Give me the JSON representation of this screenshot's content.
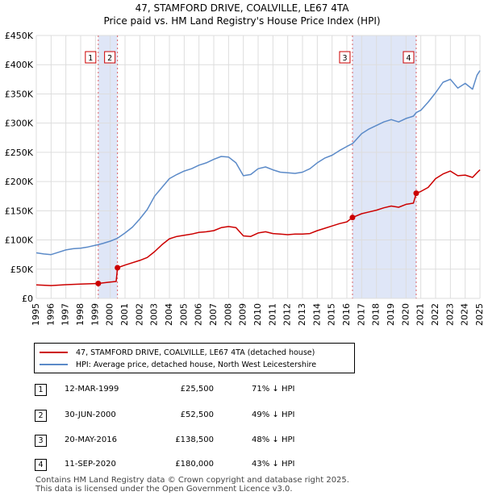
{
  "title": "47, STAMFORD DRIVE, COALVILLE, LE67 4TA",
  "subtitle": "Price paid vs. HM Land Registry's House Price Index (HPI)",
  "colors": {
    "price": "#cc0000",
    "hpi": "#5b8ac8",
    "band": "#dfe6f7",
    "grid": "#dddddd"
  },
  "chart_data": {
    "type": "line",
    "x_range": [
      1995,
      2025
    ],
    "y_range": [
      0,
      450000
    ],
    "y_ticks": [
      0,
      50000,
      100000,
      150000,
      200000,
      250000,
      300000,
      350000,
      400000,
      450000
    ],
    "y_tick_labels": [
      "£0",
      "£50K",
      "£100K",
      "£150K",
      "£200K",
      "£250K",
      "£300K",
      "£350K",
      "£400K",
      "£450K"
    ],
    "x_ticks": [
      1995,
      1996,
      1997,
      1998,
      1999,
      2000,
      2001,
      2002,
      2003,
      2004,
      2005,
      2006,
      2007,
      2008,
      2009,
      2010,
      2011,
      2012,
      2013,
      2014,
      2015,
      2016,
      2017,
      2018,
      2019,
      2020,
      2021,
      2022,
      2023,
      2024,
      2025
    ],
    "x_tick_labels": [
      "1995",
      "1996",
      "1997",
      "1998",
      "1999",
      "2000",
      "2001",
      "2002",
      "2003",
      "2004",
      "2005",
      "2006",
      "2007",
      "2008",
      "2009",
      "2010",
      "2011",
      "2012",
      "2013",
      "2014",
      "2015",
      "2016",
      "2017",
      "2018",
      "2019",
      "2020",
      "2021",
      "2022",
      "2023",
      "2024",
      "2025"
    ],
    "shaded_bands": [
      [
        1999.19,
        2000.49
      ],
      [
        2016.38,
        2020.69
      ]
    ],
    "series": [
      {
        "name": "47, STAMFORD DRIVE, COALVILLE, LE67 4TA (detached house)",
        "color": "#cc0000",
        "points": [
          [
            1995.0,
            23000
          ],
          [
            1996.0,
            22000
          ],
          [
            1997.0,
            23500
          ],
          [
            1998.0,
            24500
          ],
          [
            1999.19,
            25500
          ],
          [
            2000.0,
            28000
          ],
          [
            2000.4,
            29000
          ],
          [
            2000.49,
            52500
          ],
          [
            2001.0,
            57000
          ],
          [
            2002.0,
            65000
          ],
          [
            2002.5,
            70000
          ],
          [
            2003.0,
            80000
          ],
          [
            2003.5,
            92000
          ],
          [
            2004.0,
            102000
          ],
          [
            2004.5,
            106000
          ],
          [
            2005.0,
            108000
          ],
          [
            2005.5,
            110000
          ],
          [
            2006.0,
            113000
          ],
          [
            2006.5,
            114000
          ],
          [
            2007.0,
            116000
          ],
          [
            2007.5,
            121000
          ],
          [
            2008.0,
            123000
          ],
          [
            2008.5,
            121000
          ],
          [
            2009.0,
            107000
          ],
          [
            2009.5,
            106000
          ],
          [
            2010.0,
            112000
          ],
          [
            2010.5,
            114000
          ],
          [
            2011.0,
            111000
          ],
          [
            2011.5,
            110000
          ],
          [
            2012.0,
            109000
          ],
          [
            2012.5,
            110000
          ],
          [
            2013.0,
            110000
          ],
          [
            2013.5,
            111000
          ],
          [
            2014.0,
            116000
          ],
          [
            2014.5,
            120000
          ],
          [
            2015.0,
            124000
          ],
          [
            2015.5,
            128000
          ],
          [
            2016.0,
            131000
          ],
          [
            2016.38,
            138500
          ],
          [
            2017.0,
            145000
          ],
          [
            2017.5,
            148000
          ],
          [
            2018.0,
            151000
          ],
          [
            2018.5,
            155000
          ],
          [
            2019.0,
            158000
          ],
          [
            2019.5,
            156000
          ],
          [
            2020.0,
            161000
          ],
          [
            2020.5,
            163000
          ],
          [
            2020.69,
            180000
          ],
          [
            2021.0,
            183000
          ],
          [
            2021.5,
            190000
          ],
          [
            2022.0,
            205000
          ],
          [
            2022.5,
            213000
          ],
          [
            2023.0,
            218000
          ],
          [
            2023.5,
            210000
          ],
          [
            2024.0,
            211000
          ],
          [
            2024.5,
            207000
          ],
          [
            2024.8,
            215000
          ],
          [
            2025.0,
            220000
          ]
        ]
      },
      {
        "name": "HPI: Average price, detached house, North West Leicestershire",
        "color": "#5b8ac8",
        "points": [
          [
            1995.0,
            78000
          ],
          [
            1995.5,
            76000
          ],
          [
            1996.0,
            75000
          ],
          [
            1996.5,
            79000
          ],
          [
            1997.0,
            83000
          ],
          [
            1997.5,
            85000
          ],
          [
            1998.0,
            86000
          ],
          [
            1998.5,
            88000
          ],
          [
            1999.0,
            91000
          ],
          [
            1999.19,
            92000
          ],
          [
            1999.5,
            94000
          ],
          [
            2000.0,
            98000
          ],
          [
            2000.49,
            103000
          ],
          [
            2001.0,
            112000
          ],
          [
            2001.5,
            122000
          ],
          [
            2002.0,
            136000
          ],
          [
            2002.5,
            152000
          ],
          [
            2003.0,
            175000
          ],
          [
            2003.5,
            190000
          ],
          [
            2004.0,
            205000
          ],
          [
            2004.5,
            212000
          ],
          [
            2005.0,
            218000
          ],
          [
            2005.5,
            222000
          ],
          [
            2006.0,
            228000
          ],
          [
            2006.5,
            232000
          ],
          [
            2007.0,
            238000
          ],
          [
            2007.5,
            243000
          ],
          [
            2008.0,
            242000
          ],
          [
            2008.5,
            232000
          ],
          [
            2009.0,
            210000
          ],
          [
            2009.5,
            212000
          ],
          [
            2010.0,
            222000
          ],
          [
            2010.5,
            225000
          ],
          [
            2011.0,
            220000
          ],
          [
            2011.5,
            216000
          ],
          [
            2012.0,
            215000
          ],
          [
            2012.5,
            214000
          ],
          [
            2013.0,
            216000
          ],
          [
            2013.5,
            222000
          ],
          [
            2014.0,
            232000
          ],
          [
            2014.5,
            240000
          ],
          [
            2015.0,
            245000
          ],
          [
            2015.5,
            253000
          ],
          [
            2016.0,
            260000
          ],
          [
            2016.38,
            265000
          ],
          [
            2016.5,
            268000
          ],
          [
            2017.0,
            282000
          ],
          [
            2017.5,
            290000
          ],
          [
            2018.0,
            296000
          ],
          [
            2018.5,
            302000
          ],
          [
            2019.0,
            306000
          ],
          [
            2019.5,
            302000
          ],
          [
            2020.0,
            308000
          ],
          [
            2020.5,
            312000
          ],
          [
            2020.69,
            318000
          ],
          [
            2021.0,
            322000
          ],
          [
            2021.5,
            336000
          ],
          [
            2022.0,
            352000
          ],
          [
            2022.5,
            370000
          ],
          [
            2023.0,
            375000
          ],
          [
            2023.5,
            360000
          ],
          [
            2024.0,
            368000
          ],
          [
            2024.5,
            358000
          ],
          [
            2024.8,
            382000
          ],
          [
            2025.0,
            390000
          ]
        ]
      }
    ],
    "sales": [
      {
        "label": "1",
        "year": 1999.19,
        "price": 25500
      },
      {
        "label": "2",
        "year": 2000.49,
        "price": 52500
      },
      {
        "label": "3",
        "year": 2016.38,
        "price": 138500
      },
      {
        "label": "4",
        "year": 2020.69,
        "price": 180000
      }
    ]
  },
  "legend": {
    "price_label": "47, STAMFORD DRIVE, COALVILLE, LE67 4TA (detached house)",
    "hpi_label": "HPI: Average price, detached house, North West Leicestershire"
  },
  "transactions": [
    {
      "num": "1",
      "date": "12-MAR-1999",
      "price": "£25,500",
      "hpi": "71% ↓ HPI"
    },
    {
      "num": "2",
      "date": "30-JUN-2000",
      "price": "£52,500",
      "hpi": "49% ↓ HPI"
    },
    {
      "num": "3",
      "date": "20-MAY-2016",
      "price": "£138,500",
      "hpi": "48% ↓ HPI"
    },
    {
      "num": "4",
      "date": "11-SEP-2020",
      "price": "£180,000",
      "hpi": "43% ↓ HPI"
    }
  ],
  "footer": {
    "line1": "Contains HM Land Registry data © Crown copyright and database right 2025.",
    "line2": "This data is licensed under the Open Government Licence v3.0."
  }
}
